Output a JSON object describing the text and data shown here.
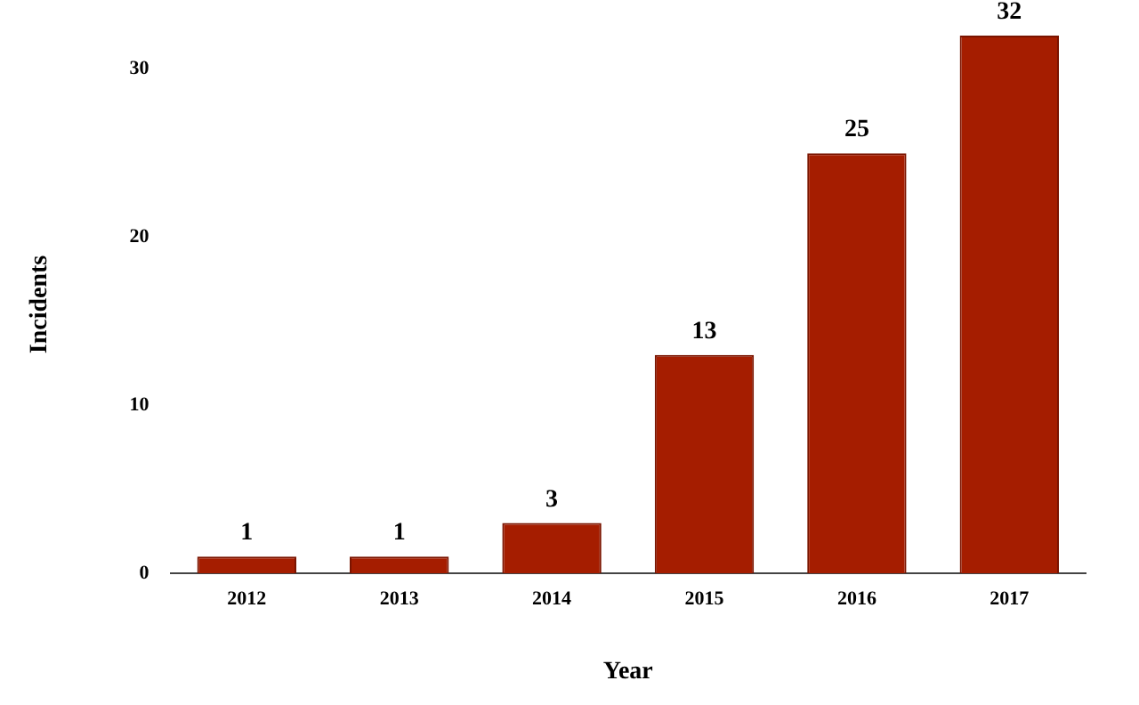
{
  "chart_data": {
    "type": "bar",
    "xlabel": "Year",
    "ylabel": "Incidents",
    "categories": [
      "2012",
      "2013",
      "2014",
      "2015",
      "2016",
      "2017"
    ],
    "values": [
      1,
      1,
      3,
      13,
      25,
      32
    ],
    "color": "#a51d00",
    "ylim": [
      0,
      32
    ],
    "yticks": [
      0,
      10,
      20,
      30
    ],
    "grid": false,
    "legend": false,
    "data_labels": true
  }
}
